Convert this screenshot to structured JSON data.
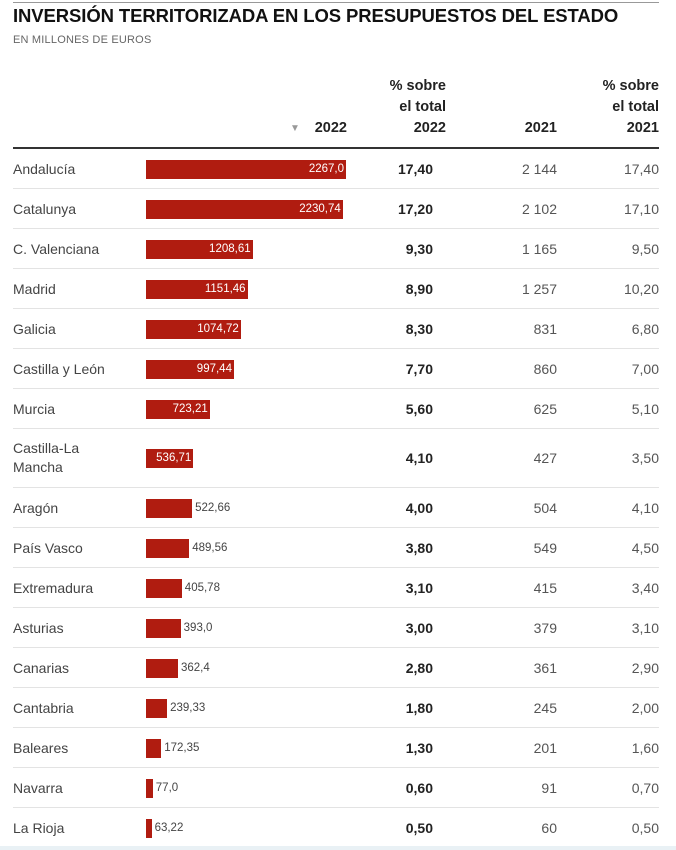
{
  "title": "INVERSIÓN TERRITORIZADA EN LOS PRESUPUESTOS DEL ESTADO",
  "subtitle": "EN MILLONES DE EUROS",
  "headers": {
    "col_2022": "2022",
    "pct2022_l1": "% sobre",
    "pct2022_l2": "el total",
    "pct2022_l3": "2022",
    "col_2021": "2021",
    "pct2021_l1": "% sobre",
    "pct2021_l2": "el total",
    "pct2021_l3": "2021",
    "sort_icon": "▼"
  },
  "colors": {
    "bar": "#b01c10"
  },
  "chart_data": {
    "type": "bar",
    "title": "INVERSIÓN TERRITORIZADA EN LOS PRESUPUESTOS DEL ESTADO",
    "subtitle": "EN MILLONES DE EUROS",
    "categories": [
      "Andalucía",
      "Catalunya",
      "C. Valenciana",
      "Madrid",
      "Galicia",
      "Castilla y León",
      "Murcia",
      "Castilla-La Mancha",
      "Aragón",
      "País Vasco",
      "Extremadura",
      "Asturias",
      "Canarias",
      "Cantabria",
      "Baleares",
      "Navarra",
      "La Rioja"
    ],
    "series": [
      {
        "name": "2022",
        "values": [
          2267.0,
          2230.74,
          1208.61,
          1151.46,
          1074.72,
          997.44,
          723.21,
          536.71,
          522.66,
          489.56,
          405.78,
          393.0,
          362.4,
          239.33,
          172.35,
          77.0,
          63.22
        ]
      }
    ],
    "rows": [
      {
        "name": "Andalucía",
        "v2022": 2267.0,
        "v2022_label": "2267,0",
        "pct2022": "17,40",
        "v2021": "2 144",
        "pct2021": "17,40"
      },
      {
        "name": "Catalunya",
        "v2022": 2230.74,
        "v2022_label": "2230,74",
        "pct2022": "17,20",
        "v2021": "2 102",
        "pct2021": "17,10"
      },
      {
        "name": "C. Valenciana",
        "v2022": 1208.61,
        "v2022_label": "1208,61",
        "pct2022": "9,30",
        "v2021": "1 165",
        "pct2021": "9,50"
      },
      {
        "name": "Madrid",
        "v2022": 1151.46,
        "v2022_label": "1151,46",
        "pct2022": "8,90",
        "v2021": "1 257",
        "pct2021": "10,20"
      },
      {
        "name": "Galicia",
        "v2022": 1074.72,
        "v2022_label": "1074,72",
        "pct2022": "8,30",
        "v2021": "831",
        "pct2021": "6,80"
      },
      {
        "name": "Castilla y León",
        "v2022": 997.44,
        "v2022_label": "997,44",
        "pct2022": "7,70",
        "v2021": "860",
        "pct2021": "7,00"
      },
      {
        "name": "Murcia",
        "v2022": 723.21,
        "v2022_label": "723,21",
        "pct2022": "5,60",
        "v2021": "625",
        "pct2021": "5,10"
      },
      {
        "name": "Castilla-La Mancha",
        "v2022": 536.71,
        "v2022_label": "536,71",
        "pct2022": "4,10",
        "v2021": "427",
        "pct2021": "3,50"
      },
      {
        "name": "Aragón",
        "v2022": 522.66,
        "v2022_label": "522,66",
        "pct2022": "4,00",
        "v2021": "504",
        "pct2021": "4,10"
      },
      {
        "name": "País Vasco",
        "v2022": 489.56,
        "v2022_label": "489,56",
        "pct2022": "3,80",
        "v2021": "549",
        "pct2021": "4,50"
      },
      {
        "name": "Extremadura",
        "v2022": 405.78,
        "v2022_label": "405,78",
        "pct2022": "3,10",
        "v2021": "415",
        "pct2021": "3,40"
      },
      {
        "name": "Asturias",
        "v2022": 393.0,
        "v2022_label": "393,0",
        "pct2022": "3,00",
        "v2021": "379",
        "pct2021": "3,10"
      },
      {
        "name": "Canarias",
        "v2022": 362.4,
        "v2022_label": "362,4",
        "pct2022": "2,80",
        "v2021": "361",
        "pct2021": "2,90"
      },
      {
        "name": "Cantabria",
        "v2022": 239.33,
        "v2022_label": "239,33",
        "pct2022": "1,80",
        "v2021": "245",
        "pct2021": "2,00"
      },
      {
        "name": "Baleares",
        "v2022": 172.35,
        "v2022_label": "172,35",
        "pct2022": "1,30",
        "v2021": "201",
        "pct2021": "1,60"
      },
      {
        "name": "Navarra",
        "v2022": 77.0,
        "v2022_label": "77,0",
        "pct2022": "0,60",
        "v2021": "91",
        "pct2021": "0,70"
      },
      {
        "name": "La Rioja",
        "v2022": 63.22,
        "v2022_label": "63,22",
        "pct2022": "0,50",
        "v2021": "60",
        "pct2021": "0,50"
      }
    ]
  }
}
